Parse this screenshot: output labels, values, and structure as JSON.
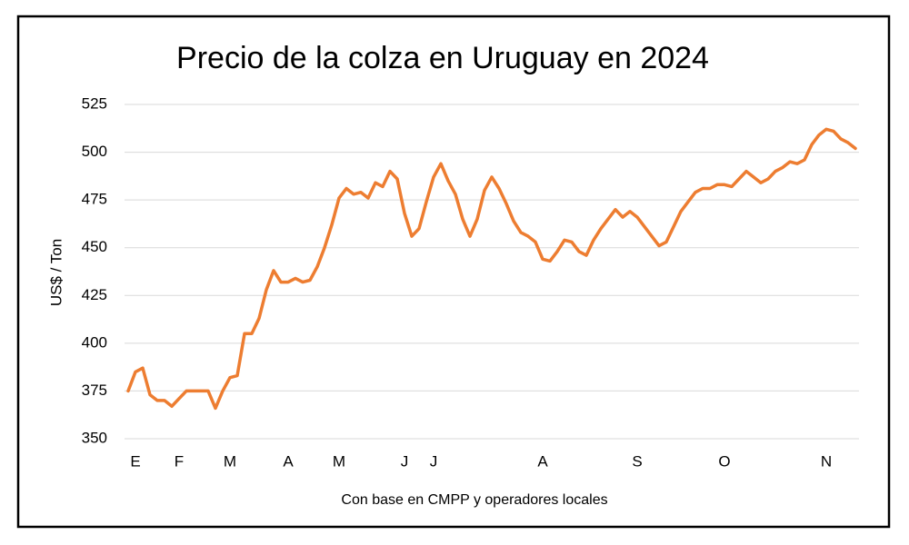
{
  "chart_data": {
    "type": "line",
    "title": "Precio de la colza en Uruguay en 2024",
    "ylabel": "US$ / Ton",
    "caption": "Con base en CMPP y operadores locales",
    "categories": [
      null,
      "E",
      null,
      null,
      null,
      null,
      null,
      "F",
      null,
      null,
      null,
      null,
      null,
      null,
      "M",
      null,
      null,
      null,
      null,
      null,
      null,
      null,
      "A",
      null,
      null,
      null,
      null,
      null,
      null,
      "M",
      null,
      null,
      null,
      null,
      null,
      null,
      null,
      null,
      "J",
      null,
      null,
      null,
      "J",
      null,
      null,
      null,
      null,
      null,
      null,
      null,
      null,
      null,
      null,
      null,
      null,
      null,
      null,
      "A",
      null,
      null,
      null,
      null,
      null,
      null,
      null,
      null,
      null,
      null,
      null,
      null,
      "S",
      null,
      null,
      null,
      null,
      null,
      null,
      null,
      null,
      null,
      null,
      null,
      "O",
      null,
      null,
      null,
      null,
      null,
      null,
      null,
      null,
      null,
      null,
      null,
      null,
      null,
      "N",
      null,
      null,
      null,
      null
    ],
    "values": [
      375,
      385,
      387,
      373,
      370,
      370,
      367,
      371,
      375,
      375,
      375,
      375,
      366,
      375,
      382,
      383,
      405,
      405,
      413,
      428,
      438,
      432,
      432,
      434,
      432,
      433,
      440,
      450,
      462,
      476,
      481,
      478,
      479,
      476,
      484,
      482,
      490,
      486,
      468,
      456,
      460,
      474,
      487,
      494,
      485,
      478,
      465,
      456,
      465,
      480,
      487,
      481,
      473,
      464,
      458,
      456,
      453,
      444,
      443,
      448,
      454,
      453,
      448,
      446,
      454,
      460,
      465,
      470,
      466,
      469,
      466,
      461,
      456,
      451,
      453,
      461,
      469,
      474,
      479,
      481,
      481,
      483,
      483,
      482,
      486,
      490,
      487,
      484,
      486,
      490,
      492,
      495,
      494,
      496,
      504,
      509,
      512,
      511,
      507,
      505,
      502
    ],
    "color": "#ed7d31",
    "ylim": [
      350,
      525
    ],
    "yticks": [
      350,
      375,
      400,
      425,
      450,
      475,
      500,
      525
    ],
    "grid": true
  }
}
